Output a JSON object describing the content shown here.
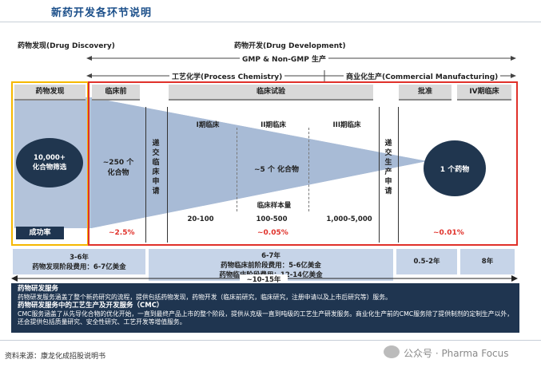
{
  "header": {
    "title": "新药开发各环节说明"
  },
  "top_labels": {
    "discovery": "药物发现(Drug Discovery)",
    "development": "药物开发(Drug Development)",
    "gmp": "GMP & Non-GMP 生产",
    "process_chem": "工艺化学(Process Chemistry)",
    "commercial": "商业化生产(Commercial Manufacturing)"
  },
  "stages": {
    "discovery": "药物发现",
    "preclinical": "临床前",
    "clinical_trials": "临床试验",
    "approval": "批准",
    "phase4": "IV期临床"
  },
  "submit_clinical": [
    "递",
    "交",
    "临",
    "床",
    "申",
    "请"
  ],
  "submit_production": [
    "递",
    "交",
    "生",
    "产",
    "申",
    "请"
  ],
  "circles": {
    "left_line1": "10,000+",
    "left_line2": "化合物筛选",
    "right": "1 个药物"
  },
  "funnel": {
    "compounds_line1": "~250 个",
    "compounds_line2": "化合物",
    "five": "~5 个 化合物"
  },
  "phases": {
    "p1": "I期临床",
    "p2": "II期临床",
    "p3": "III期临床",
    "sample_label": "临床样本量",
    "p1_sample": "20-100",
    "p2_sample": "100-500",
    "p3_sample": "1,000-5,000"
  },
  "success": {
    "label": "成功率",
    "preclinical": "~2.5%",
    "clinical": "~0.05%",
    "approval": "~0.01%"
  },
  "cost": {
    "discovery_years": "3-6年",
    "discovery_cost": "药物发现阶段费用：6-7亿美金",
    "dev_years": "6-7年",
    "preclinical_cost": "药物临床前阶段费用：5-6亿美金",
    "clinical_cost": "药物临床阶段费用：12-14亿美金",
    "approval_years": "0.5-2年",
    "phase4_years": "8年",
    "total": "~10-15年"
  },
  "services": {
    "h1": "药物研发服务",
    "p1": "药物研发服务涵盖了整个新药研究的流程，提供包括药物发现，药物开发（临床前研究，临床研究，注册申请以及上市后研究等）服务。",
    "h2": "药物研发服务中的工艺生产及开发服务（CMC）",
    "p2": "CMC服务涵盖了从先导化合物的优化开始，一直到最终产品上市的整个阶段，提供从克级一直到吨级的工艺生产研发服务。商业化生产前的CMC服务除了提供制剂的定制生产以外，还会提供包括质量研究、安全性研究、工艺开发等增值服务。"
  },
  "footer": {
    "source": "资料来源：康龙化成招股说明书",
    "watermark": "公众号 · Pharma Focus"
  },
  "colors": {
    "title_blue": "#1b4f8a",
    "red": "#e0312a",
    "yellow": "#f5b800",
    "navy": "#20364f",
    "funnel": "#9fb3cf"
  }
}
